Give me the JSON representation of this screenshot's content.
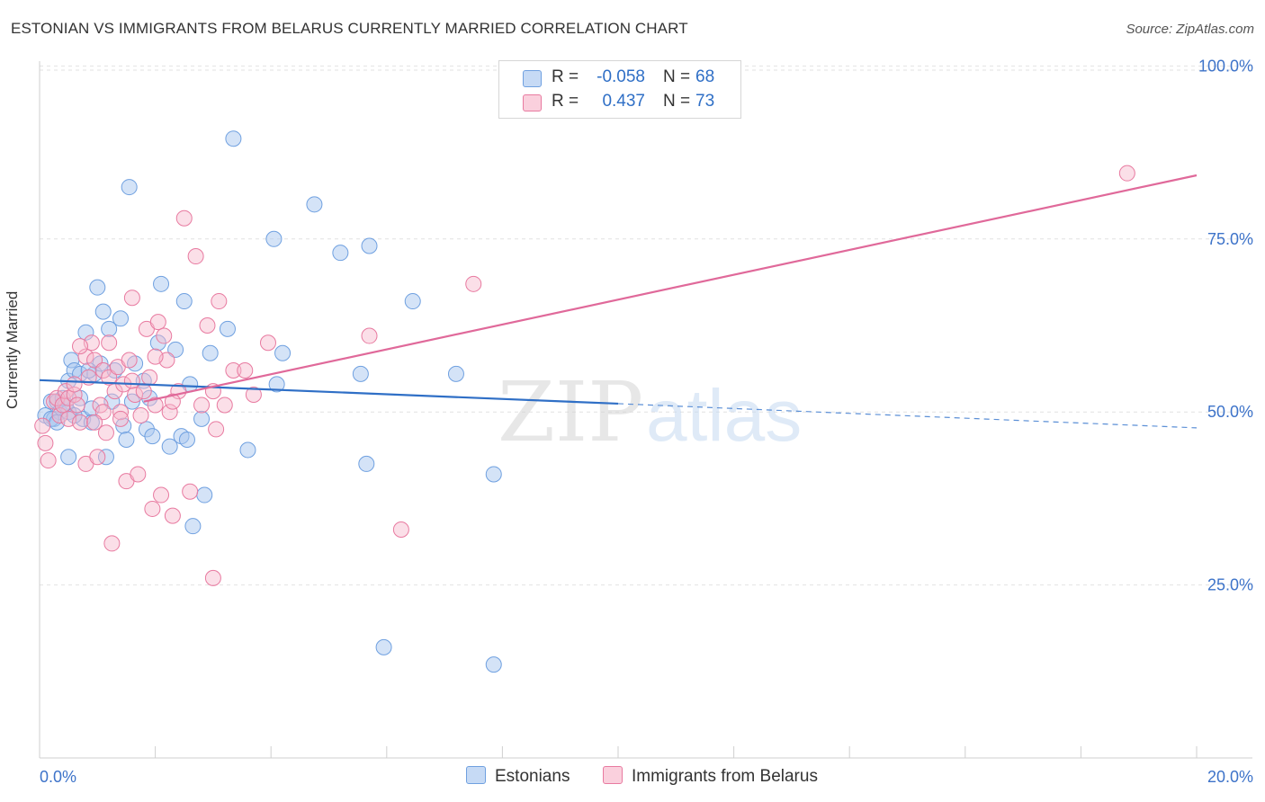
{
  "title": "ESTONIAN VS IMMIGRANTS FROM BELARUS CURRENTLY MARRIED CORRELATION CHART",
  "source": "Source: ZipAtlas.com",
  "watermark": {
    "zip": "ZIP",
    "atlas": "atlas"
  },
  "legend_top": [
    {
      "r_label": "R =",
      "r_value": "-0.058",
      "n_label": "N =",
      "n_value": "68",
      "color": "#aac8f0"
    },
    {
      "r_label": "R =",
      "r_value": "0.437",
      "n_label": "N =",
      "n_value": "73",
      "color": "#f7b8cc"
    }
  ],
  "legend_bottom": [
    {
      "label": "Estonians",
      "color": "#aac8f0"
    },
    {
      "label": "Immigrants from Belarus",
      "color": "#f7b8cc"
    }
  ],
  "chart_data": {
    "type": "scatter",
    "title": "ESTONIAN VS IMMIGRANTS FROM BELARUS CURRENTLY MARRIED CORRELATION CHART",
    "xlabel": "",
    "ylabel": "Currently Married",
    "xlim": [
      0,
      20
    ],
    "ylim": [
      0,
      102
    ],
    "x_tick_labels": [
      "0.0%",
      "20.0%"
    ],
    "y_ticks": [
      25,
      50,
      75,
      100
    ],
    "y_tick_labels": [
      "25.0%",
      "50.0%",
      "75.0%",
      "100.0%"
    ],
    "grid": true,
    "legend_position": "top-center",
    "series": [
      {
        "name": "Estonians",
        "color": "#6fa0e0",
        "fill": "#aac8f0",
        "r": -0.058,
        "n": 68,
        "trend": {
          "x": [
            0,
            10
          ],
          "y": [
            54.6,
            51.2
          ],
          "dashed_to": [
            20,
            47.7
          ]
        },
        "points": [
          [
            0.1,
            49.5
          ],
          [
            0.2,
            51.5
          ],
          [
            0.25,
            49
          ],
          [
            0.3,
            51.5
          ],
          [
            0.35,
            50
          ],
          [
            0.4,
            52
          ],
          [
            0.5,
            50
          ],
          [
            0.5,
            43.5
          ],
          [
            0.5,
            54.5
          ],
          [
            0.55,
            57.5
          ],
          [
            0.6,
            56
          ],
          [
            0.7,
            55.5
          ],
          [
            0.7,
            52
          ],
          [
            0.75,
            49
          ],
          [
            0.8,
            61.5
          ],
          [
            0.9,
            50.5
          ],
          [
            0.9,
            48.5
          ],
          [
            0.95,
            55.5
          ],
          [
            1.0,
            68
          ],
          [
            1.05,
            57
          ],
          [
            1.1,
            64.5
          ],
          [
            1.15,
            43.5
          ],
          [
            1.2,
            62
          ],
          [
            1.25,
            51.5
          ],
          [
            1.4,
            63.5
          ],
          [
            1.45,
            48
          ],
          [
            1.5,
            46
          ],
          [
            1.55,
            82.5
          ],
          [
            1.6,
            51.5
          ],
          [
            1.65,
            57
          ],
          [
            1.8,
            54.5
          ],
          [
            1.85,
            47.5
          ],
          [
            1.9,
            52
          ],
          [
            1.95,
            46.5
          ],
          [
            2.05,
            60
          ],
          [
            2.1,
            68.5
          ],
          [
            2.25,
            45
          ],
          [
            2.35,
            59
          ],
          [
            2.45,
            46.5
          ],
          [
            2.5,
            66
          ],
          [
            2.55,
            46
          ],
          [
            2.6,
            54
          ],
          [
            2.8,
            49
          ],
          [
            2.85,
            38
          ],
          [
            2.95,
            58.5
          ],
          [
            3.25,
            62
          ],
          [
            3.35,
            89.5
          ],
          [
            3.6,
            44.5
          ],
          [
            4.05,
            75
          ],
          [
            4.1,
            54
          ],
          [
            4.2,
            58.5
          ],
          [
            4.75,
            80
          ],
          [
            5.2,
            73
          ],
          [
            5.55,
            55.5
          ],
          [
            5.65,
            42.5
          ],
          [
            5.7,
            74
          ],
          [
            5.95,
            16
          ],
          [
            2.65,
            33.5
          ],
          [
            6.45,
            66
          ],
          [
            7.2,
            55.5
          ],
          [
            7.85,
            13.5
          ],
          [
            7.85,
            41
          ],
          [
            0.2,
            49
          ],
          [
            0.3,
            48.5
          ],
          [
            0.45,
            51
          ],
          [
            0.6,
            49.5
          ],
          [
            0.85,
            56
          ],
          [
            1.3,
            56
          ]
        ]
      },
      {
        "name": "Immigrants from Belarus",
        "color": "#e87aa0",
        "fill": "#f7b8cc",
        "r": 0.437,
        "n": 73,
        "trend": {
          "x": [
            1.8,
            20
          ],
          "y": [
            51.5,
            84.2
          ]
        },
        "points": [
          [
            0.05,
            48
          ],
          [
            0.1,
            45.5
          ],
          [
            0.15,
            43
          ],
          [
            0.25,
            51.5
          ],
          [
            0.3,
            52
          ],
          [
            0.35,
            49.5
          ],
          [
            0.4,
            51
          ],
          [
            0.45,
            53
          ],
          [
            0.5,
            52
          ],
          [
            0.5,
            49
          ],
          [
            0.6,
            52.5
          ],
          [
            0.65,
            51
          ],
          [
            0.7,
            48.5
          ],
          [
            0.8,
            42.5
          ],
          [
            0.8,
            58
          ],
          [
            0.85,
            55
          ],
          [
            0.9,
            60
          ],
          [
            0.95,
            57.5
          ],
          [
            1.0,
            43.5
          ],
          [
            1.05,
            51
          ],
          [
            1.1,
            50
          ],
          [
            1.1,
            56
          ],
          [
            1.15,
            47
          ],
          [
            1.2,
            55
          ],
          [
            1.25,
            31
          ],
          [
            1.3,
            53
          ],
          [
            1.35,
            56.5
          ],
          [
            1.4,
            50
          ],
          [
            1.45,
            54
          ],
          [
            1.5,
            40
          ],
          [
            1.55,
            57.5
          ],
          [
            1.6,
            66.5
          ],
          [
            1.65,
            52.5
          ],
          [
            1.7,
            41
          ],
          [
            1.75,
            49.5
          ],
          [
            1.8,
            53
          ],
          [
            1.85,
            62
          ],
          [
            1.9,
            55
          ],
          [
            1.95,
            36
          ],
          [
            2.0,
            51
          ],
          [
            2.05,
            63
          ],
          [
            2.1,
            38
          ],
          [
            2.15,
            61
          ],
          [
            2.2,
            57.5
          ],
          [
            2.25,
            50
          ],
          [
            2.3,
            35
          ],
          [
            2.4,
            53
          ],
          [
            2.5,
            78
          ],
          [
            2.6,
            38.5
          ],
          [
            2.7,
            72.5
          ],
          [
            2.8,
            51
          ],
          [
            2.9,
            62.5
          ],
          [
            3.0,
            53
          ],
          [
            3.05,
            47.5
          ],
          [
            3.1,
            66
          ],
          [
            3.2,
            51
          ],
          [
            3.35,
            56
          ],
          [
            3.55,
            56
          ],
          [
            3.7,
            52.5
          ],
          [
            3.95,
            60
          ],
          [
            3.0,
            26
          ],
          [
            5.7,
            61
          ],
          [
            6.25,
            33
          ],
          [
            7.5,
            68.5
          ],
          [
            18.8,
            84.5
          ],
          [
            1.2,
            60
          ],
          [
            1.4,
            49
          ],
          [
            0.95,
            48.5
          ],
          [
            0.7,
            59.5
          ],
          [
            0.6,
            54
          ],
          [
            2.0,
            58
          ],
          [
            1.6,
            54.5
          ],
          [
            2.3,
            51.5
          ]
        ]
      }
    ]
  }
}
